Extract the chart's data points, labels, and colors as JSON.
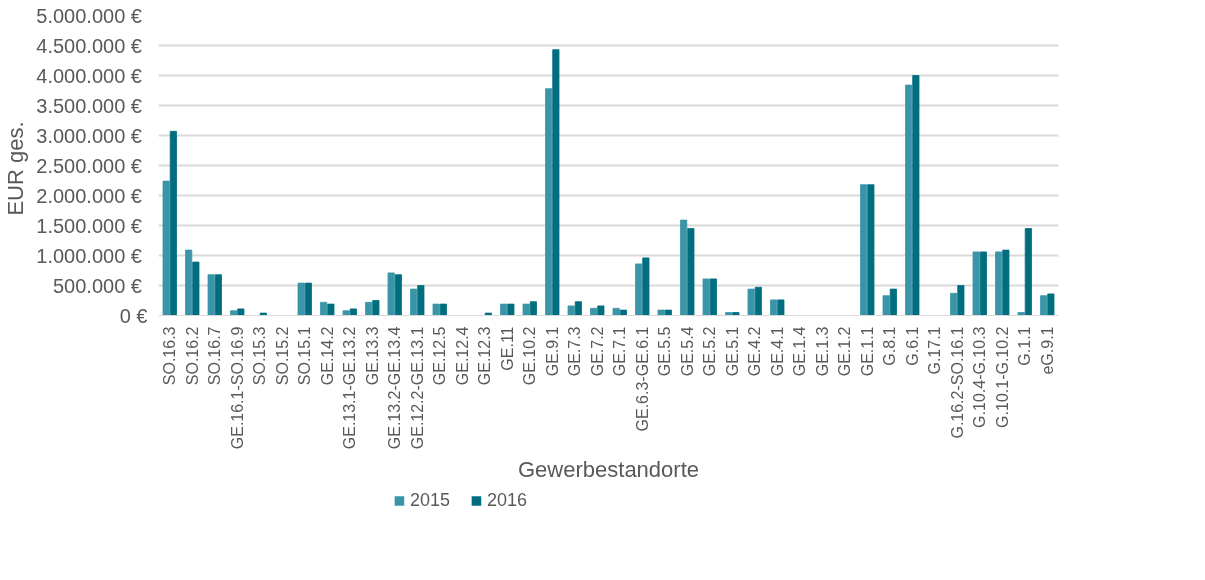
{
  "chart_data": {
    "type": "bar",
    "xlabel": "Gewerbestandorte",
    "ylabel": "EUR  ges.",
    "categories": [
      "SO.16.3",
      "SO.16.2",
      "SO.16.7",
      "GE.16.1-SO.16.9",
      "SO.15.3",
      "SO.15.2",
      "SO.15.1",
      "GE.14.2",
      "GE.13.1-GE.13.2",
      "GE.13.3",
      "GE.13.2-GE.13.4",
      "GE.12.2-GE.13.1",
      "GE.12.5",
      "GE.12.4",
      "GE.12.3",
      "GE.11",
      "GE.10.2",
      "GE.9.1",
      "GE.7.3",
      "GE.7.2",
      "GE.7.1",
      "GE.6.3-GE.6.1",
      "GE.5.5",
      "GE.5.4",
      "GE.5.2",
      "GE.5.1",
      "GE.4.2",
      "GE.4.1",
      "GE.1.4",
      "GE.1.3",
      "GE.1.2",
      "GE.1.1",
      "G.8.1",
      "G.6.1",
      "G.17.1",
      "G.16.2-SO.16.1",
      "G.10.4-G.10.3",
      "G.10.1-G.10.2",
      "G.1.1",
      "eG.9.1"
    ],
    "series": [
      {
        "name": "2015",
        "color": "#3a95a8",
        "values": [
          2240000,
          1090000,
          680000,
          80000,
          0,
          0,
          540000,
          220000,
          80000,
          220000,
          710000,
          440000,
          190000,
          0,
          0,
          190000,
          190000,
          3780000,
          160000,
          120000,
          120000,
          860000,
          90000,
          1590000,
          610000,
          50000,
          440000,
          260000,
          0,
          0,
          0,
          2180000,
          330000,
          3840000,
          0,
          370000,
          1060000,
          1060000,
          50000,
          330000
        ]
      },
      {
        "name": "2016",
        "color": "#006e7f",
        "values": [
          3070000,
          890000,
          680000,
          110000,
          40000,
          0,
          540000,
          190000,
          110000,
          250000,
          680000,
          500000,
          190000,
          0,
          40000,
          190000,
          230000,
          4430000,
          230000,
          160000,
          90000,
          960000,
          90000,
          1450000,
          610000,
          50000,
          470000,
          260000,
          0,
          0,
          0,
          2180000,
          440000,
          4000000,
          0,
          500000,
          1060000,
          1090000,
          1450000,
          360000
        ]
      }
    ],
    "ylim": [
      0,
      5000000
    ],
    "yticks": [
      {
        "value": 0,
        "label": "0 €"
      },
      {
        "value": 500000,
        "label": "500.000  €"
      },
      {
        "value": 1000000,
        "label": "1.000.000  €"
      },
      {
        "value": 1500000,
        "label": "1.500.000  €"
      },
      {
        "value": 2000000,
        "label": "2.000.000  €"
      },
      {
        "value": 2500000,
        "label": "2.500.000  €"
      },
      {
        "value": 3000000,
        "label": "3.000.000  €"
      },
      {
        "value": 3500000,
        "label": "3.500.000  €"
      },
      {
        "value": 4000000,
        "label": "4.000.000  €"
      },
      {
        "value": 4500000,
        "label": "4.500.000  €"
      },
      {
        "value": 5000000,
        "label": "5.000.000  €"
      }
    ],
    "grid": "y",
    "legend": "bottom"
  }
}
